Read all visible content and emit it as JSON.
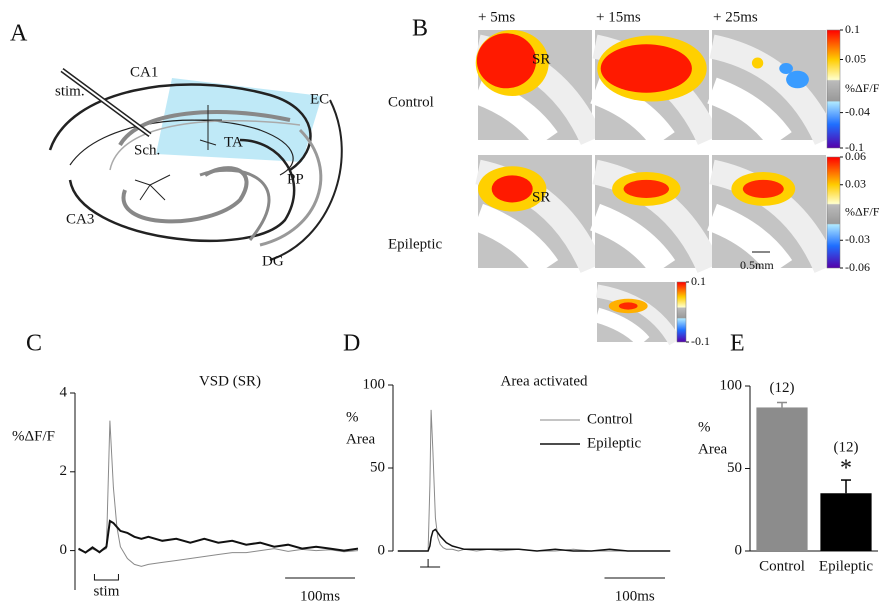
{
  "panel_labels": [
    "A",
    "B",
    "C",
    "D",
    "E"
  ],
  "diagram": {
    "labels": [
      "stim.",
      "CA1",
      "EC",
      "Sch.",
      "TA",
      "PP",
      "CA3",
      "DG"
    ]
  },
  "imaging": {
    "time_labels": [
      "+ 5ms",
      "+ 15ms",
      "+ 25ms"
    ],
    "rows": [
      "Control",
      "Epileptic"
    ],
    "region_label": "SR",
    "scale_bar": "0.5mm",
    "colorbars": [
      {
        "ticks": [
          0.1,
          0.05,
          -0.04,
          -0.1
        ],
        "label": "%ΔF/F"
      },
      {
        "ticks": [
          0.06,
          0.03,
          -0.03,
          -0.06
        ],
        "label": "%ΔF/F"
      },
      {
        "ticks": [
          0.1,
          -0.1
        ]
      }
    ]
  },
  "chart_data": [
    {
      "type": "line",
      "title": "VSD (SR)",
      "ylabel": [
        "%ΔF/F"
      ],
      "x": [
        -40,
        -30,
        -20,
        -10,
        0,
        5,
        10,
        15,
        20,
        30,
        40,
        50,
        60,
        80,
        100,
        120,
        140,
        160,
        180,
        200,
        220,
        240,
        260,
        280,
        300,
        320,
        340,
        360
      ],
      "series": [
        {
          "color": "#8a8a8a",
          "width": 1,
          "values": [
            0.02,
            -0.05,
            0.04,
            -0.03,
            0.05,
            3.3,
            1.6,
            0.6,
            0.1,
            -0.2,
            -0.35,
            -0.4,
            -0.35,
            -0.3,
            -0.25,
            -0.2,
            -0.15,
            -0.1,
            -0.05,
            -0.05,
            0,
            0.05,
            -0.02,
            0.03,
            0,
            0.02,
            -0.03,
            0
          ]
        },
        {
          "color": "#111111",
          "width": 2,
          "values": [
            0.05,
            -0.05,
            0.08,
            -0.04,
            0.1,
            0.75,
            0.7,
            0.6,
            0.5,
            0.45,
            0.35,
            0.3,
            0.35,
            0.25,
            0.3,
            0.2,
            0.3,
            0.2,
            0.25,
            0.15,
            0.2,
            0.1,
            0.15,
            0.05,
            0.1,
            0.05,
            0,
            0.05
          ]
        }
      ],
      "xlim": [
        -45,
        370
      ],
      "ylim": [
        -1,
        4
      ],
      "yticks": [
        0,
        2,
        4
      ],
      "stim": {
        "x": 0,
        "label": "stim"
      },
      "scale_bar": {
        "value": 100,
        "label": "100ms"
      }
    },
    {
      "type": "line",
      "title": "Area activated",
      "ylabel": [
        "%",
        "Area"
      ],
      "x": [
        -50,
        -40,
        -30,
        -20,
        -10,
        0,
        3,
        5,
        8,
        12,
        16,
        20,
        25,
        30,
        40,
        50,
        60,
        80,
        100,
        120,
        150,
        180,
        210,
        240,
        270,
        300,
        330,
        360,
        390,
        400
      ],
      "series": [
        {
          "name": "Control",
          "color": "#8a8a8a",
          "width": 1,
          "values": [
            0,
            0,
            0,
            0,
            0,
            0,
            40,
            85,
            60,
            20,
            8,
            4,
            2,
            1,
            1,
            0,
            1,
            0,
            1,
            0,
            1,
            0,
            0,
            1,
            0,
            0,
            0,
            0,
            0,
            0
          ]
        },
        {
          "name": "Epileptic",
          "color": "#111111",
          "width": 1.5,
          "values": [
            0,
            0,
            0,
            0,
            0,
            0,
            3,
            8,
            12,
            13,
            11,
            9,
            7,
            5,
            3,
            2,
            1,
            1,
            1,
            1,
            1,
            0,
            1,
            0,
            0,
            1,
            0,
            0,
            0,
            0
          ]
        }
      ],
      "xlim": [
        -58,
        408
      ],
      "ylim": [
        0,
        100
      ],
      "yticks": [
        0,
        50,
        100
      ],
      "stim": {
        "x": 0
      },
      "scale_bar": {
        "value": 100,
        "label": "100ms"
      }
    },
    {
      "type": "bar",
      "ylabel": [
        "%",
        "Area"
      ],
      "categories": [
        "Control",
        "Epileptic"
      ],
      "values": [
        87,
        35
      ],
      "errors": [
        3,
        8
      ],
      "colors": [
        "#8c8c8c",
        "#000000"
      ],
      "n_labels": [
        "(12)",
        "(12)"
      ],
      "significance": [
        null,
        "*"
      ],
      "ylim": [
        0,
        100
      ],
      "yticks": [
        0,
        50,
        100
      ]
    }
  ]
}
